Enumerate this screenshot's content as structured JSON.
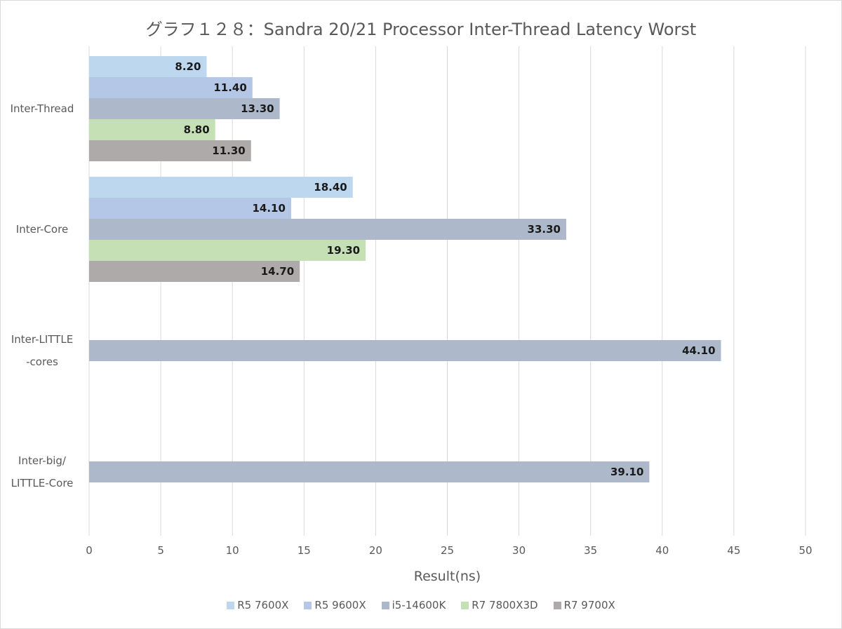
{
  "chart_data": {
    "type": "bar",
    "orientation": "horizontal",
    "title": "グラフ１２８：Sandra 20/21 Processor Inter-Thread Latency Worst",
    "xlabel": "Result(ns)",
    "ylabel": "",
    "xlim": [
      0,
      50
    ],
    "xticks": [
      "0",
      "5",
      "10",
      "15",
      "20",
      "25",
      "30",
      "35",
      "40",
      "45",
      "50"
    ],
    "grid": true,
    "legend_position": "bottom",
    "categories": [
      {
        "lines": [
          "Inter-Thread"
        ]
      },
      {
        "lines": [
          "Inter-Core"
        ]
      },
      {
        "lines": [
          "Inter-LITTLE",
          "-cores"
        ]
      },
      {
        "lines": [
          "Inter-big/",
          "LITTLE-Core"
        ]
      }
    ],
    "series": [
      {
        "name": "R5 7600X",
        "color": "#bdd7ee",
        "values": [
          8.2,
          18.4,
          null,
          null
        ],
        "labels": [
          "8.20",
          "18.40",
          "",
          ""
        ]
      },
      {
        "name": "R5 9600X",
        "color": "#b4c7e7",
        "values": [
          11.4,
          14.1,
          null,
          null
        ],
        "labels": [
          "11.40",
          "14.10",
          "",
          ""
        ]
      },
      {
        "name": "i5-14600K",
        "color": "#adb9ca",
        "values": [
          13.3,
          33.3,
          44.1,
          39.1
        ],
        "labels": [
          "13.30",
          "33.30",
          "44.10",
          "39.10"
        ]
      },
      {
        "name": "R7 7800X3D",
        "color": "#c5e0b4",
        "values": [
          8.8,
          19.3,
          null,
          null
        ],
        "labels": [
          "8.80",
          "19.30",
          "",
          ""
        ]
      },
      {
        "name": "R7 9700X",
        "color": "#aeaaaa",
        "values": [
          11.3,
          14.7,
          null,
          null
        ],
        "labels": [
          "11.30",
          "14.70",
          "",
          ""
        ]
      }
    ]
  }
}
